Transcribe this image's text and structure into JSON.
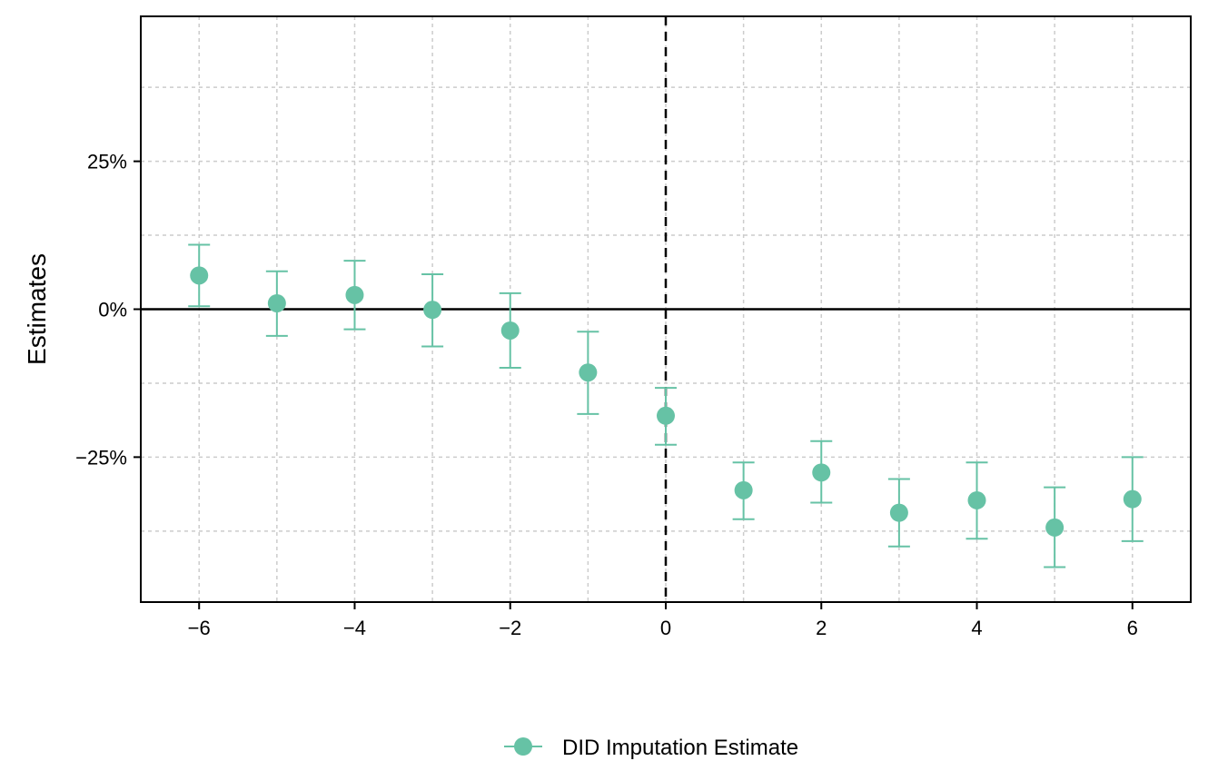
{
  "chart_data": {
    "type": "scatter",
    "title": "",
    "xlabel": "",
    "ylabel": "Estimates",
    "xlim": [
      -6.75,
      6.75
    ],
    "ylim": [
      -49.5,
      49.5
    ],
    "x_ticks": [
      -6,
      -4,
      -2,
      0,
      2,
      4,
      6
    ],
    "x_tick_labels": [
      "−6",
      "−4",
      "−2",
      "0",
      "2",
      "4",
      "6"
    ],
    "x_minor_grid": [
      -5,
      -3,
      -1,
      1,
      3,
      5
    ],
    "y_ticks": [
      25,
      0,
      -25
    ],
    "y_tick_labels": [
      "25%",
      "0%",
      "−25%"
    ],
    "y_minor_grid": [
      37.5,
      12.5,
      -12.5,
      -37.5
    ],
    "grid": true,
    "reference_lines": {
      "horizontal_solid_at": 0,
      "vertical_dashed_at": 0
    },
    "legend_position": "bottom-center",
    "series": [
      {
        "name": "DID Imputation Estimate",
        "color": "#66C2A5",
        "points": [
          {
            "x": -6,
            "y": 5.7,
            "lo": 0.5,
            "hi": 10.9
          },
          {
            "x": -5,
            "y": 1.0,
            "lo": -4.5,
            "hi": 6.4
          },
          {
            "x": -4,
            "y": 2.4,
            "lo": -3.4,
            "hi": 8.2
          },
          {
            "x": -3,
            "y": -0.1,
            "lo": -6.3,
            "hi": 5.9
          },
          {
            "x": -2,
            "y": -3.6,
            "lo": -9.9,
            "hi": 2.7
          },
          {
            "x": -1,
            "y": -10.7,
            "lo": -17.7,
            "hi": -3.8
          },
          {
            "x": 0,
            "y": -18.0,
            "lo": -22.9,
            "hi": -13.3
          },
          {
            "x": 1,
            "y": -30.6,
            "lo": -35.5,
            "hi": -25.9
          },
          {
            "x": 2,
            "y": -27.6,
            "lo": -32.7,
            "hi": -22.3
          },
          {
            "x": 3,
            "y": -34.4,
            "lo": -40.1,
            "hi": -28.7
          },
          {
            "x": 4,
            "y": -32.3,
            "lo": -38.8,
            "hi": -25.9
          },
          {
            "x": 5,
            "y": -36.9,
            "lo": -43.6,
            "hi": -30.1
          },
          {
            "x": 6,
            "y": -32.1,
            "lo": -39.2,
            "hi": -25.0
          }
        ]
      }
    ]
  }
}
